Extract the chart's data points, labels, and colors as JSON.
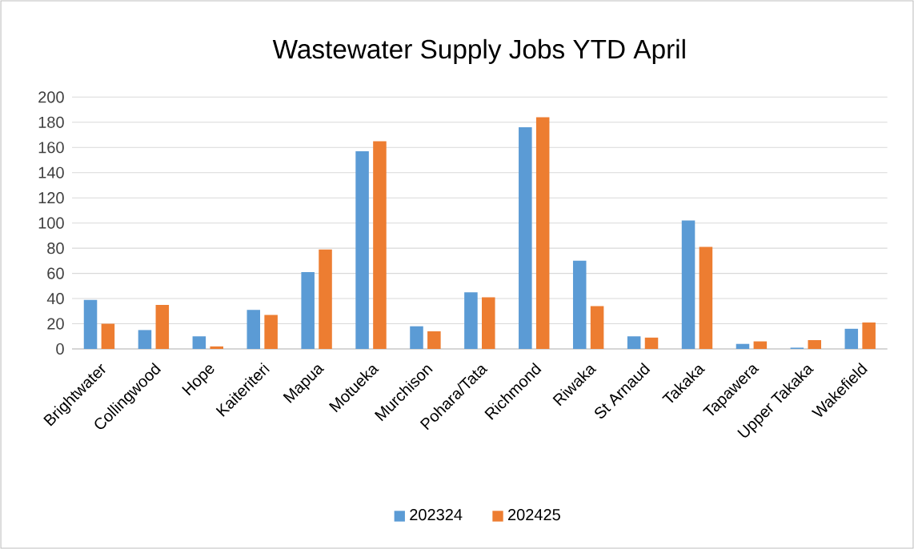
{
  "chart_data": {
    "type": "bar",
    "title": "Wastewater Supply Jobs YTD April",
    "categories": [
      "Brightwater",
      "Collingwood",
      "Hope",
      "Kaiteriteri",
      "Mapua",
      "Motueka",
      "Murchison",
      "Pohara/Tata",
      "Richmond",
      "Riwaka",
      "St Arnaud",
      "Takaka",
      "Tapawera",
      "Upper Takaka",
      "Wakefield"
    ],
    "series": [
      {
        "name": "202324",
        "color": "#5b9bd5",
        "values": [
          39,
          15,
          10,
          31,
          61,
          157,
          18,
          45,
          176,
          70,
          10,
          102,
          4,
          1,
          16
        ]
      },
      {
        "name": "202425",
        "color": "#ed7d31",
        "values": [
          20,
          35,
          2,
          27,
          79,
          165,
          14,
          41,
          184,
          34,
          9,
          81,
          6,
          7,
          21
        ]
      }
    ],
    "ylim": [
      0,
      200
    ],
    "yticks": [
      0,
      20,
      40,
      60,
      80,
      100,
      120,
      140,
      160,
      180,
      200
    ],
    "grid": "y",
    "legend": "bottom"
  }
}
